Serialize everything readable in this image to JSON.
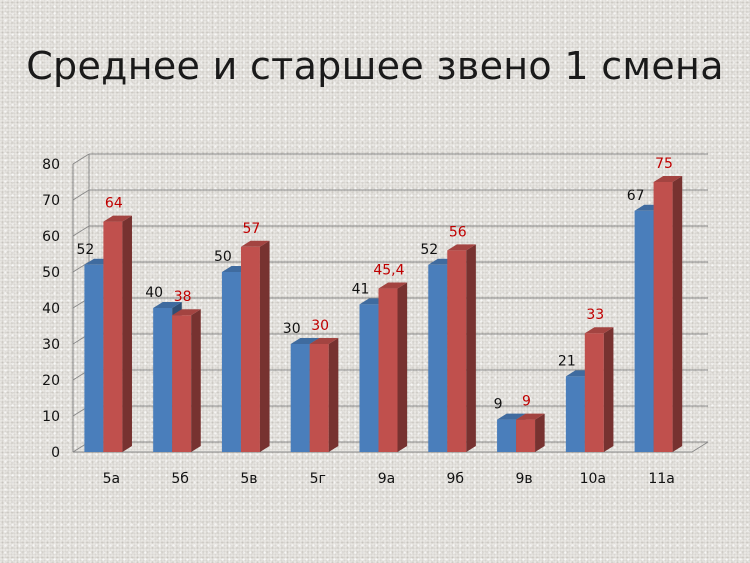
{
  "title": "Среднее и старшее звено 1 смена",
  "colors": {
    "series1": "#4a7ebb",
    "series2": "#c0504d",
    "label2": "#c00000",
    "label1": "#111111",
    "grid": "#888888"
  },
  "chart_data": {
    "type": "bar",
    "title": "Среднее и старшее звено 1 смена",
    "categories": [
      "5а",
      "5б",
      "5в",
      "5г",
      "9а",
      "9б",
      "9в",
      "10а",
      "11а"
    ],
    "series": [
      {
        "values": [
          52,
          40,
          50,
          30,
          41,
          52,
          9,
          21,
          67
        ],
        "labels": [
          "52",
          "40",
          "50",
          "30",
          "41",
          "52",
          "9",
          "21",
          "67"
        ]
      },
      {
        "values": [
          64,
          38,
          57,
          30,
          45.4,
          56,
          9,
          33,
          75
        ],
        "labels": [
          "64",
          "38",
          "57",
          "30",
          "45,4",
          "56",
          "9",
          "33",
          "75"
        ]
      }
    ],
    "ylim": [
      0,
      80
    ],
    "yticks": [
      0,
      10,
      20,
      30,
      40,
      50,
      60,
      70,
      80
    ],
    "grid": true,
    "legend": "none",
    "style": "3d-clustered-column"
  }
}
